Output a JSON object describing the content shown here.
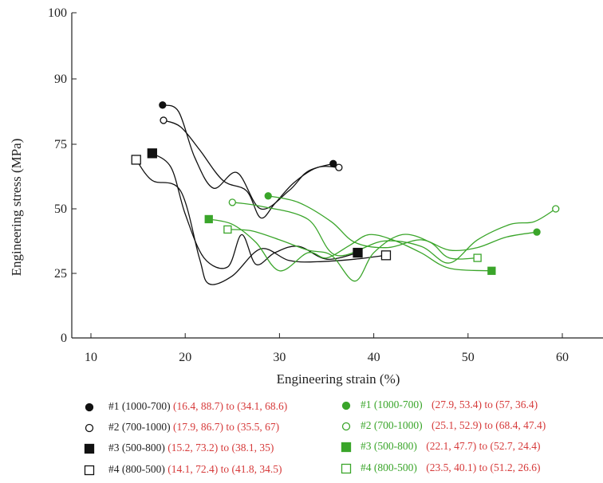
{
  "chart_data": {
    "type": "line",
    "xlabel": "Engineering strain (%)",
    "ylabel": "Engineering stress (MPa)",
    "xlim": [
      8,
      64
    ],
    "ylim": [
      0,
      100
    ],
    "y_scale": "segmented",
    "y_ticks": [
      0,
      25,
      50,
      75,
      90,
      100
    ],
    "x_ticks": [
      10,
      20,
      30,
      40,
      50,
      60
    ],
    "grid": false,
    "legend_position": "bottom",
    "colors": {
      "black": "#111111",
      "green": "#3aa52a",
      "range_text": "#d63a3a"
    },
    "series": [
      {
        "name": "#1 (1000-700)",
        "range": "(16.4, 88.7) to (34.1, 68.6)",
        "color": "#111111",
        "marker": "filled-circle",
        "x": [
          17.6,
          19.3,
          21.0,
          23.0,
          25.5,
          28.0,
          31.0,
          33.0,
          35.7
        ],
        "y": [
          84.0,
          82.5,
          70.0,
          58.0,
          64.0,
          50.0,
          57.0,
          64.5,
          67.5
        ]
      },
      {
        "name": "#2 (700-1000)",
        "range": "(17.9, 86.7) to (35.5, 67)",
        "color": "#111111",
        "marker": "open-circle",
        "x": [
          17.7,
          19.5,
          21.5,
          24.0,
          26.5,
          28.0,
          29.5,
          31.5,
          34.0,
          36.3
        ],
        "y": [
          80.5,
          79.0,
          73.0,
          61.0,
          57.0,
          46.5,
          52.0,
          60.0,
          66.0,
          66.0
        ]
      },
      {
        "name": "#3 (500-800)",
        "range": "(15.2, 73.2) to (38.1, 35)",
        "color": "#111111",
        "marker": "filled-square",
        "x": [
          16.5,
          18.5,
          20.0,
          22.0,
          24.5,
          26.0,
          27.5,
          29.5,
          32.0,
          35.0,
          38.3
        ],
        "y": [
          71.5,
          66.0,
          48.0,
          31.0,
          27.5,
          40.0,
          28.5,
          33.0,
          35.5,
          30.5,
          33.0
        ]
      },
      {
        "name": "#4 (800-500)",
        "range": "(14.1, 72.4) to (41.8, 34.5)",
        "color": "#111111",
        "marker": "open-square",
        "x": [
          14.8,
          16.5,
          19.5,
          21.5,
          22.5,
          25.0,
          28.0,
          31.0,
          34.0,
          38.0,
          41.3
        ],
        "y": [
          69.0,
          61.0,
          57.0,
          31.0,
          21.0,
          24.0,
          34.5,
          30.0,
          29.5,
          30.5,
          32.0
        ]
      },
      {
        "name": "#1 (1000-700)",
        "range": "(27.9, 53.4) to (57, 36.4)",
        "color": "#3aa52a",
        "marker": "filled-circle",
        "x": [
          28.8,
          32.0,
          35.5,
          38.0,
          41.5,
          45.0,
          48.0,
          51.0,
          54.0,
          57.3
        ],
        "y": [
          55.0,
          52.5,
          45.0,
          37.0,
          35.0,
          38.0,
          34.0,
          35.0,
          39.0,
          41.0
        ]
      },
      {
        "name": "#2 (700-1000)",
        "range": "(25.1, 52.9) to (68.4, 47.4)",
        "color": "#3aa52a",
        "marker": "open-circle",
        "x": [
          25.0,
          28.0,
          33.0,
          36.0,
          41.0,
          45.0,
          48.0,
          51.0,
          54.5,
          57.0,
          59.3
        ],
        "y": [
          52.5,
          51.0,
          46.0,
          32.0,
          37.5,
          35.5,
          29.0,
          38.0,
          44.0,
          45.0,
          50.0
        ]
      },
      {
        "name": "#3 (500-800)",
        "range": "(22.1, 47.7) to (52.7, 24.4)",
        "color": "#3aa52a",
        "marker": "filled-square",
        "x": [
          22.5,
          25.0,
          27.5,
          30.0,
          33.0,
          35.0,
          37.5,
          39.5,
          42.0,
          45.0,
          48.0,
          52.5
        ],
        "y": [
          46.0,
          44.0,
          37.0,
          26.0,
          33.0,
          31.0,
          36.0,
          40.0,
          38.0,
          33.0,
          27.0,
          26.0
        ]
      },
      {
        "name": "#4 (800-500)",
        "range": "(23.5, 40.1) to (51.2, 26.6)",
        "color": "#3aa52a",
        "marker": "open-square",
        "x": [
          24.5,
          27.0,
          30.0,
          33.0,
          35.5,
          38.0,
          40.0,
          43.0,
          46.0,
          48.0,
          51.0
        ],
        "y": [
          42.0,
          41.5,
          38.0,
          34.0,
          32.0,
          22.0,
          33.0,
          40.0,
          37.0,
          31.0,
          31.0
        ]
      }
    ]
  }
}
